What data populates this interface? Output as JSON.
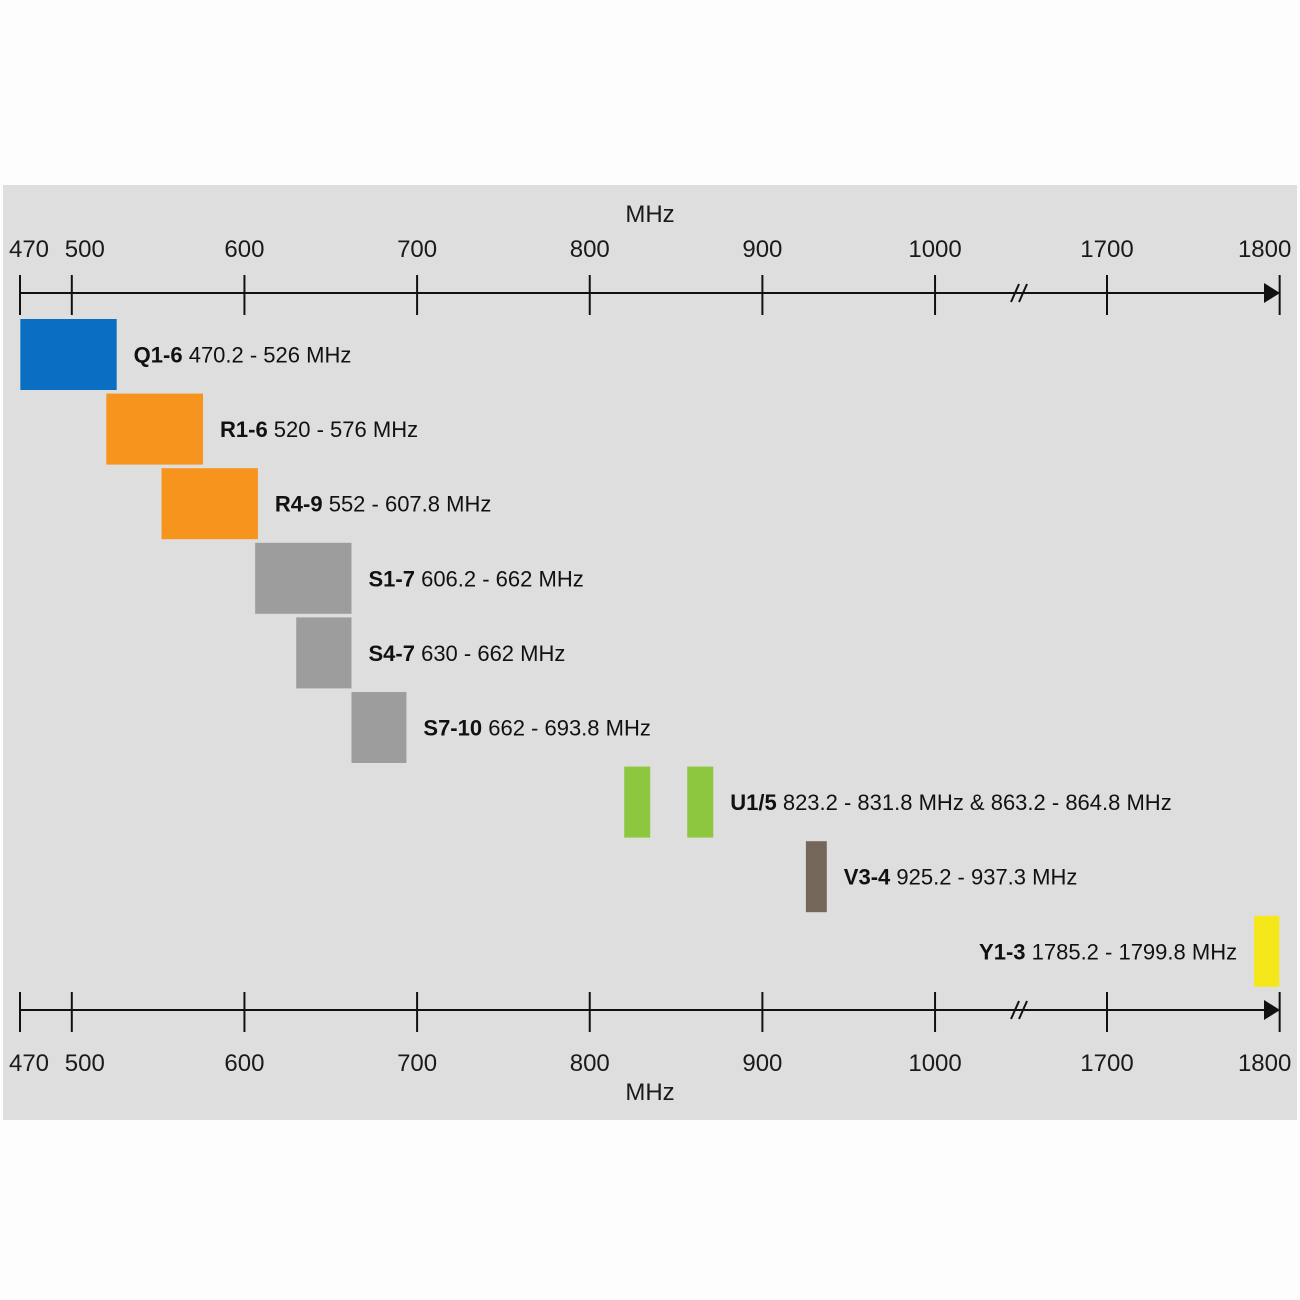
{
  "chart_data": {
    "type": "bar",
    "subtype": "frequency-range-bands",
    "xlabel": "MHz",
    "axis_ticks": [
      470,
      500,
      600,
      700,
      800,
      900,
      1000,
      1700,
      1800
    ],
    "axis_break": [
      1000,
      1700
    ],
    "xlim": [
      470,
      1800
    ],
    "bands": [
      {
        "name": "Q1-6",
        "range_text": "470.2 - 526 MHz",
        "segments": [
          [
            470.2,
            526
          ]
        ],
        "color": "#0a6fc2"
      },
      {
        "name": "R1-6",
        "range_text": "520 - 576 MHz",
        "segments": [
          [
            520,
            576
          ]
        ],
        "color": "#f7941d"
      },
      {
        "name": "R4-9",
        "range_text": "552 - 607.8 MHz",
        "segments": [
          [
            552,
            607.8
          ]
        ],
        "color": "#f7941d"
      },
      {
        "name": "S1-7",
        "range_text": "606.2 - 662 MHz",
        "segments": [
          [
            606.2,
            662
          ]
        ],
        "color": "#9d9d9d"
      },
      {
        "name": "S4-7",
        "range_text": "630 - 662 MHz",
        "segments": [
          [
            630,
            662
          ]
        ],
        "color": "#9d9d9d"
      },
      {
        "name": "S7-10",
        "range_text": "662 - 693.8 MHz",
        "segments": [
          [
            662,
            693.8
          ]
        ],
        "color": "#9d9d9d"
      },
      {
        "name": "U1/5",
        "range_text": "823.2 - 831.8 MHz & 863.2 - 864.8 MHz",
        "segments": [
          [
            823.2,
            831.8
          ],
          [
            863.2,
            864.8
          ]
        ],
        "color": "#8dc63f"
      },
      {
        "name": "V3-4",
        "range_text": "925.2 - 937.3 MHz",
        "segments": [
          [
            925.2,
            937.3
          ]
        ],
        "color": "#75665a"
      },
      {
        "name": "Y1-3",
        "range_text": "1785.2 - 1799.8 MHz",
        "segments": [
          [
            1785.2,
            1799.8
          ]
        ],
        "color": "#f5e81a"
      }
    ]
  }
}
